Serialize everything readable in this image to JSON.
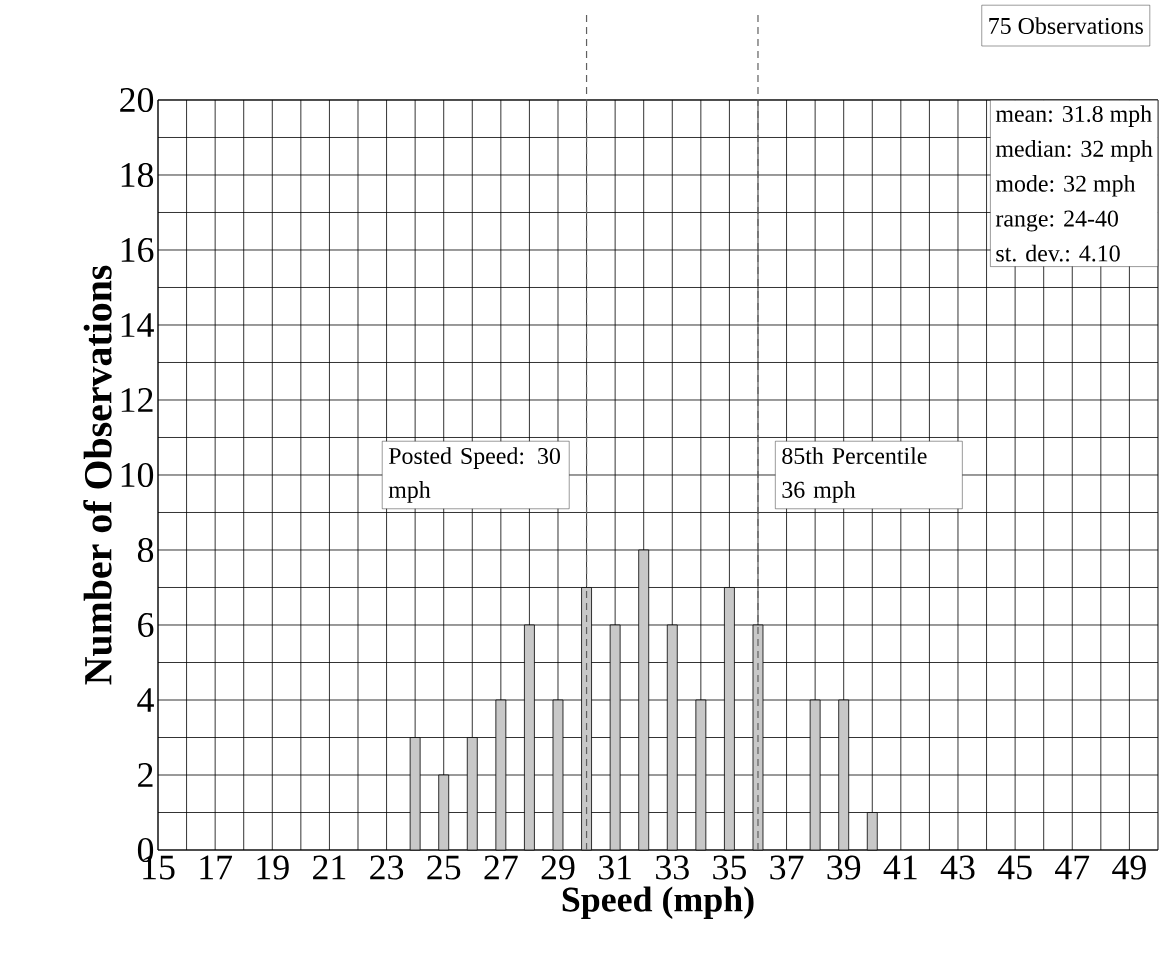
{
  "chart_data": {
    "type": "bar",
    "xlabel": "Speed (mph)",
    "ylabel": "Number of Observations",
    "x": [
      24,
      25,
      26,
      27,
      28,
      29,
      30,
      31,
      32,
      33,
      34,
      35,
      36,
      37,
      38,
      39,
      40
    ],
    "values": [
      3,
      2,
      3,
      4,
      6,
      4,
      7,
      6,
      8,
      6,
      4,
      7,
      6,
      0,
      4,
      4,
      1
    ],
    "color": "#c8c8c8",
    "xlim": [
      15,
      50
    ],
    "xticks": [
      15,
      17,
      19,
      21,
      23,
      25,
      27,
      29,
      31,
      33,
      35,
      37,
      39,
      41,
      43,
      45,
      47,
      49
    ],
    "ylim": [
      0,
      20
    ],
    "yticks": [
      0,
      2,
      4,
      6,
      8,
      10,
      12,
      14,
      16,
      18,
      20
    ],
    "grid": true,
    "ref_lines": [
      {
        "axis": "x",
        "value": 30,
        "label": "Posted Speed: 30 mph",
        "line_style": "dashed",
        "color": "#606060"
      },
      {
        "axis": "x",
        "value": 36,
        "label": "85th Percentile 36 mph",
        "line_style": "dashed",
        "color": "#606060"
      }
    ],
    "annotations": [
      "75 Observations",
      "mean:  31.8 mph",
      "median:  32 mph",
      "mode:  32 mph",
      "range:  24-40",
      "st. dev.:  4.10"
    ]
  }
}
